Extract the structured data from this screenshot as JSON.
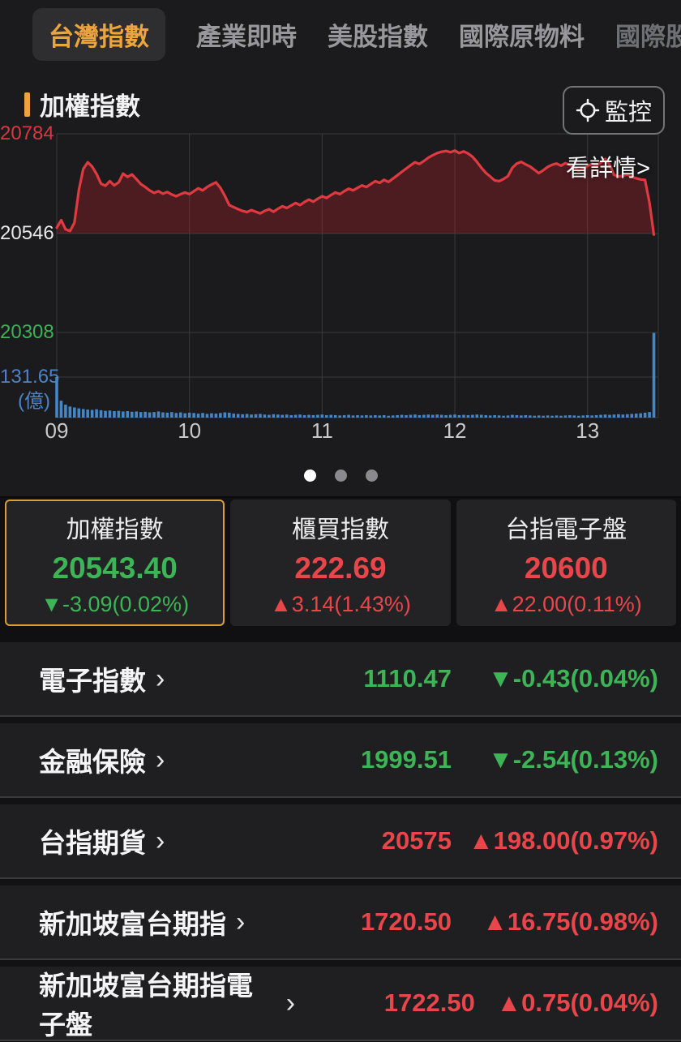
{
  "colors": {
    "accent": "#eda43c",
    "up_red": "#e8464a",
    "down_green": "#3db456",
    "line_red": "#df3a40",
    "area_fill": "rgba(196,34,44,0.30)",
    "volume_blue": "#4486c6",
    "grid": "#3a3a3c",
    "label_red": "#d8383e",
    "label_green": "#3cb257",
    "label_blue": "#4d82c4",
    "dot_active": "#ffffff",
    "dot_inactive": "#8a8a8e"
  },
  "tabs": [
    {
      "label": "台灣指數",
      "selected": true,
      "dim": false
    },
    {
      "label": "產業即時",
      "selected": false,
      "dim": false
    },
    {
      "label": "美股指數",
      "selected": false,
      "dim": false
    },
    {
      "label": "國際原物料",
      "selected": false,
      "dim": false
    },
    {
      "label": "國際股市",
      "selected": false,
      "dim": true
    }
  ],
  "chart": {
    "title": "加權指數",
    "monitor_label": "監控",
    "details_label": "看詳情>",
    "axis": {
      "high": "20784",
      "prev_close": "20546",
      "low": "20308",
      "vol_max": "131.65",
      "vol_unit": "(億)"
    }
  },
  "chart_data": {
    "type": "area",
    "title": "加權指數 intraday price with volume",
    "x_start_minute": 540,
    "x_step_minutes": 2,
    "session_minutes": [
      540,
      812
    ],
    "x_tick_minutes": [
      540,
      600,
      660,
      720,
      780
    ],
    "x_tick_labels": [
      "09",
      "10",
      "11",
      "12",
      "13"
    ],
    "ylim": [
      20308,
      20784
    ],
    "baseline_prev_close": 20546,
    "close": 20543.4,
    "volume_axis_max_yi": 131.65,
    "volume_unit": "億",
    "legend_position": "none",
    "grid": true,
    "price": [
      20560,
      20578,
      20556,
      20552,
      20572,
      20650,
      20700,
      20716,
      20706,
      20688,
      20665,
      20660,
      20671,
      20661,
      20668,
      20689,
      20681,
      20687,
      20676,
      20664,
      20657,
      20649,
      20643,
      20647,
      20641,
      20645,
      20639,
      20635,
      20640,
      20644,
      20640,
      20647,
      20654,
      20649,
      20657,
      20663,
      20668,
      20655,
      20636,
      20614,
      20609,
      20604,
      20600,
      20597,
      20602,
      20598,
      20594,
      20600,
      20604,
      20598,
      20605,
      20611,
      20607,
      20613,
      20619,
      20614,
      20621,
      20627,
      20622,
      20629,
      20635,
      20631,
      20638,
      20644,
      20640,
      20647,
      20653,
      20649,
      20655,
      20661,
      20657,
      20664,
      20671,
      20667,
      20674,
      20669,
      20677,
      20685,
      20693,
      20701,
      20709,
      20716,
      20712,
      20719,
      20727,
      20733,
      20738,
      20741,
      20743,
      20740,
      20744,
      20738,
      20742,
      20737,
      20729,
      20717,
      20703,
      20691,
      20682,
      20673,
      20671,
      20676,
      20683,
      20703,
      20713,
      20717,
      20711,
      20706,
      20698,
      20690,
      20697,
      20705,
      20710,
      20713,
      20708,
      20714,
      20710,
      20703,
      20696,
      20700,
      20707,
      20712,
      20708,
      20715,
      20724,
      20710,
      20686,
      20682,
      20684,
      20687,
      20681,
      20678,
      20675,
      20674,
      20620,
      20543.4
    ],
    "volume_yi": [
      131.65,
      55,
      42,
      36,
      33,
      30,
      28,
      26,
      25,
      27,
      24,
      22,
      23,
      21,
      22,
      20,
      21,
      19,
      20,
      18,
      19,
      17,
      18,
      20,
      17,
      16,
      18,
      15,
      17,
      14,
      16,
      15,
      13,
      15,
      12,
      14,
      13,
      15,
      17,
      16,
      13,
      12,
      11,
      12,
      10,
      11,
      12,
      10,
      9,
      11,
      10,
      9,
      10,
      8,
      9,
      10,
      8,
      9,
      8,
      9,
      10,
      8,
      9,
      8,
      7,
      8,
      9,
      7,
      8,
      7,
      8,
      7,
      8,
      7,
      8,
      6,
      7,
      8,
      9,
      8,
      9,
      10,
      8,
      9,
      10,
      9,
      10,
      9,
      8,
      9,
      10,
      8,
      9,
      8,
      9,
      10,
      9,
      8,
      7,
      8,
      7,
      6,
      7,
      9,
      8,
      7,
      8,
      7,
      6,
      7,
      6,
      7,
      6,
      7,
      6,
      7,
      8,
      7,
      6,
      7,
      8,
      7,
      8,
      9,
      10,
      9,
      10,
      11,
      10,
      11,
      12,
      13,
      14,
      16,
      18,
      275
    ]
  },
  "pager": {
    "count": 3,
    "active": 0
  },
  "cards": [
    {
      "name": "加權指數",
      "value": "20543.40",
      "change": "▼-3.09(0.02%)",
      "direction": "down",
      "selected": true
    },
    {
      "name": "櫃買指數",
      "value": "222.69",
      "change": "▲3.14(1.43%)",
      "direction": "up",
      "selected": false
    },
    {
      "name": "台指電子盤",
      "value": "20600",
      "change": "▲22.00(0.11%)",
      "direction": "up",
      "selected": false
    }
  ],
  "rows": [
    {
      "name": "電子指數",
      "value": "1110.47",
      "change": "▼-0.43(0.04%)",
      "direction": "down"
    },
    {
      "name": "金融保險",
      "value": "1999.51",
      "change": "▼-2.54(0.13%)",
      "direction": "down"
    },
    {
      "name": "台指期貨",
      "value": "20575",
      "change": "▲198.00(0.97%)",
      "direction": "up"
    },
    {
      "name": "新加坡富台期指",
      "value": "1720.50",
      "change": "▲16.75(0.98%)",
      "direction": "up"
    },
    {
      "name": "新加坡富台期指電子盤",
      "value": "1722.50",
      "change": "▲0.75(0.04%)",
      "direction": "up"
    }
  ]
}
